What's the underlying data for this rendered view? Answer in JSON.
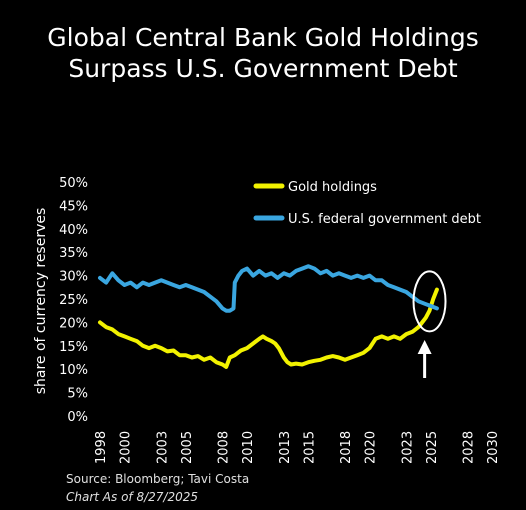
{
  "title_line1": "Global Central Bank Gold Holdings",
  "title_line2": "Surpass U.S. Government Debt",
  "source": "Source: Bloomberg; Tavi Costa",
  "as_of": "Chart As of 8/27/2025",
  "colors": {
    "background": "#000000",
    "gold": "#f2f200",
    "debt": "#3aa6e0",
    "annotation": "#ffffff"
  },
  "chart_data": {
    "type": "line",
    "ylabel": "share of currency reserves",
    "ylim": [
      0,
      50
    ],
    "xlim": [
      1998,
      2030
    ],
    "yticks": [
      "0%",
      "5%",
      "10%",
      "15%",
      "20%",
      "25%",
      "30%",
      "35%",
      "40%",
      "45%",
      "50%"
    ],
    "xticks": [
      "1998",
      "2000",
      "2003",
      "2005",
      "2008",
      "2010",
      "2013",
      "2015",
      "2018",
      "2020",
      "2023",
      "2025",
      "2028",
      "2030"
    ],
    "legend_position": "top-right",
    "grid": false,
    "series": [
      {
        "name": "Gold holdings",
        "color": "#f2f200",
        "x": [
          1998,
          1998.5,
          1999,
          1999.5,
          2000,
          2000.5,
          2001,
          2001.5,
          2002,
          2002.5,
          2003,
          2003.5,
          2004,
          2004.5,
          2005,
          2005.5,
          2006,
          2006.5,
          2007,
          2007.5,
          2008,
          2008.3,
          2008.6,
          2009,
          2009.5,
          2010,
          2010.5,
          2011,
          2011.3,
          2011.6,
          2012,
          2012.3,
          2012.6,
          2013,
          2013.3,
          2013.6,
          2014,
          2014.5,
          2015,
          2015.5,
          2016,
          2016.5,
          2017,
          2017.5,
          2018,
          2018.5,
          2019,
          2019.5,
          2020,
          2020.5,
          2021,
          2021.5,
          2022,
          2022.5,
          2023,
          2023.5,
          2024,
          2024.3,
          2024.6,
          2024.9,
          2025.2,
          2025.5
        ],
        "y": [
          20,
          19,
          18.5,
          17.5,
          17,
          16.5,
          16,
          15,
          14.5,
          15,
          14.5,
          13.8,
          14,
          13,
          13,
          12.5,
          12.8,
          12,
          12.5,
          11.5,
          11,
          10.5,
          12.5,
          13,
          14,
          14.5,
          15.5,
          16.5,
          17,
          16.5,
          16,
          15.5,
          14.5,
          12.5,
          11.5,
          11,
          11.2,
          11,
          11.5,
          11.8,
          12,
          12.5,
          12.8,
          12.5,
          12,
          12.5,
          13,
          13.5,
          14.5,
          16.5,
          17,
          16.5,
          17,
          16.5,
          17.5,
          18,
          19,
          20,
          21,
          22.5,
          25,
          27
        ]
      },
      {
        "name": "U.S. federal government debt",
        "color": "#3aa6e0",
        "x": [
          1998,
          1998.5,
          1999,
          1999.5,
          2000,
          2000.5,
          2001,
          2001.5,
          2002,
          2002.5,
          2003,
          2003.5,
          2004,
          2004.5,
          2005,
          2005.5,
          2006,
          2006.5,
          2007,
          2007.5,
          2008,
          2008.3,
          2008.6,
          2008.9,
          2009,
          2009.3,
          2009.6,
          2010,
          2010.5,
          2011,
          2011.5,
          2012,
          2012.5,
          2013,
          2013.5,
          2014,
          2014.5,
          2015,
          2015.5,
          2016,
          2016.5,
          2017,
          2017.5,
          2018,
          2018.5,
          2019,
          2019.5,
          2020,
          2020.5,
          2021,
          2021.5,
          2022,
          2022.5,
          2023,
          2023.5,
          2024,
          2024.5,
          2025,
          2025.5
        ],
        "y": [
          29.5,
          28.5,
          30.5,
          29,
          28,
          28.5,
          27.5,
          28.5,
          28,
          28.5,
          29,
          28.5,
          28,
          27.5,
          28,
          27.5,
          27,
          26.5,
          25.5,
          24.5,
          23,
          22.5,
          22.5,
          23,
          28.5,
          30,
          31,
          31.5,
          30,
          31,
          30,
          30.5,
          29.5,
          30.5,
          30,
          31,
          31.5,
          32,
          31.5,
          30.5,
          31,
          30,
          30.5,
          30,
          29.5,
          30,
          29.5,
          30,
          29,
          29,
          28,
          27.5,
          27,
          26.5,
          25.5,
          24.5,
          24,
          23.5,
          23
        ]
      }
    ],
    "annotation": "circle-and-arrow"
  }
}
